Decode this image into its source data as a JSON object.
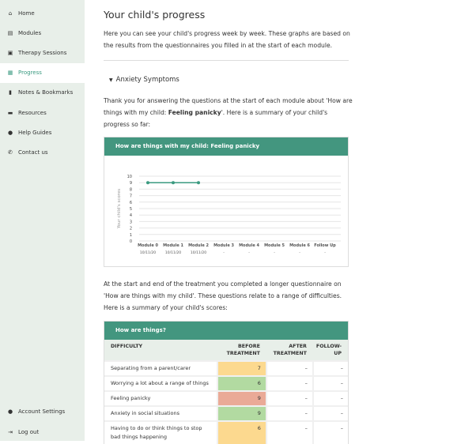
{
  "sidebar": {
    "items": [
      {
        "label": "Home",
        "icon": "home-icon",
        "glyph": "⌂"
      },
      {
        "label": "Modules",
        "icon": "clipboard-icon",
        "glyph": "▤"
      },
      {
        "label": "Therapy Sessions",
        "icon": "calendar-icon",
        "glyph": "▣"
      },
      {
        "label": "Progress",
        "icon": "chart-icon",
        "glyph": "▦",
        "active": true
      },
      {
        "label": "Notes & Bookmarks",
        "icon": "bookmark-icon",
        "glyph": "▮"
      },
      {
        "label": "Resources",
        "icon": "folder-icon",
        "glyph": "▬"
      },
      {
        "label": "Help Guides",
        "icon": "question-icon",
        "glyph": "●"
      },
      {
        "label": "Contact us",
        "icon": "phone-icon",
        "glyph": "✆"
      }
    ],
    "bottom": [
      {
        "label": "Account Settings",
        "icon": "user-icon",
        "glyph": "●"
      },
      {
        "label": "Log out",
        "icon": "logout-icon",
        "glyph": "⇥"
      }
    ]
  },
  "page": {
    "title": "Your child's progress",
    "intro": "Here you can see your child's progress week by week. These graphs are based on the results from the questionnaires you filled in at the start of each module.",
    "section": "Anxiety Symptoms",
    "section_text_a": "Thank you for answering the questions at the start of each module about 'How are things with my child: ",
    "section_text_bold": "Feeling panicky",
    "section_text_b": "'. Here is a summary of your child's progress so far:",
    "summary_text": "At the start and end of the treatment you completed a longer questionnaire on 'How are things with my child'. These questions relate to a range of difficulties. Here is a summary of your child's scores:"
  },
  "chart_data": {
    "type": "line",
    "title": "How are things with my child: Feeling panicky",
    "ylabel": "Your child's scores",
    "ylim": [
      0,
      10
    ],
    "yticks": [
      0,
      1,
      2,
      3,
      4,
      5,
      6,
      7,
      8,
      9,
      10
    ],
    "grid": true,
    "categories": [
      "Module 0",
      "Module 1",
      "Module 2",
      "Module 3",
      "Module 4",
      "Module 5",
      "Module 6",
      "Follow Up"
    ],
    "dates": [
      "10/11/20",
      "10/11/20",
      "10/11/20",
      "-",
      "-",
      "-",
      "-",
      "-"
    ],
    "series": [
      {
        "values": [
          9,
          9,
          9,
          null,
          null,
          null,
          null,
          null
        ],
        "color": "#3a9a80"
      }
    ]
  },
  "table": {
    "title": "How are things?",
    "headers": [
      "DIFFICULTY",
      "BEFORE TREATMENT",
      "AFTER TREATMENT",
      "FOLLOW-UP"
    ],
    "rows": [
      {
        "difficulty": "Separating from a parent/carer",
        "before": "7",
        "after": "–",
        "follow": "–",
        "color": "#fcd98f"
      },
      {
        "difficulty": "Worrying a lot about a range of things",
        "before": "6",
        "after": "–",
        "follow": "–",
        "color": "#b2daa1"
      },
      {
        "difficulty": "Feeling panicky",
        "before": "9",
        "after": "–",
        "follow": "–",
        "color": "#eaaa97"
      },
      {
        "difficulty": "Anxiety in social situations",
        "before": "9",
        "after": "–",
        "follow": "–",
        "color": "#b2daa1"
      },
      {
        "difficulty": "Having to do or think things to stop bad things happening",
        "before": "6",
        "after": "–",
        "follow": "–",
        "color": "#fcd98f"
      }
    ]
  }
}
